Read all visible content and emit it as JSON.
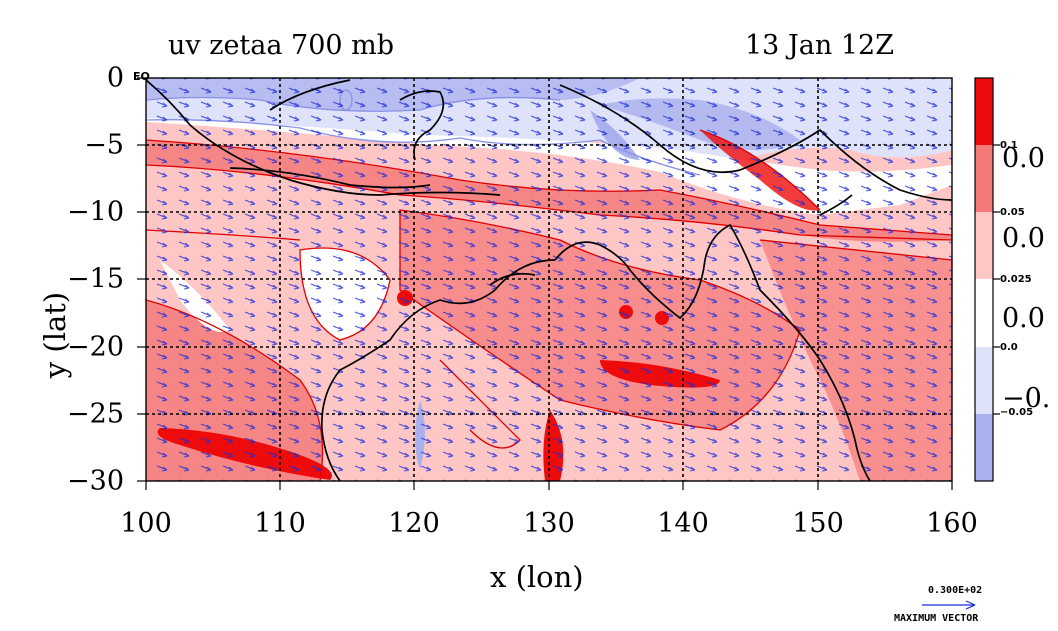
{
  "header": {
    "title_left": "uv zetaa 700 mb",
    "title_right": "13 Jan 12Z"
  },
  "colors": {
    "neg_strong": "#a9b0ee",
    "neg_weak": "#dfe2fb",
    "zero": "#ffffff",
    "pos_weak": "#ffc6c6",
    "pos_mid": "#f57979",
    "pos_strong": "#ee0b0b",
    "contour_red": "#e00000",
    "contour_blue": "#8890e8",
    "vector": "#1a2bdc",
    "coast": "#000000"
  },
  "chart_data": {
    "type": "heatmap",
    "title": "uv zetaa 700 mb",
    "subtitle": "13 Jan 12Z",
    "xlabel": "x (lon)",
    "ylabel": "y (lat)",
    "xlim": [
      100,
      160
    ],
    "ylim": [
      -30,
      0
    ],
    "x_ticks": [
      "100",
      "110",
      "120",
      "130",
      "140",
      "150",
      "160"
    ],
    "y_ticks": [
      "0",
      "−5",
      "−10",
      "−15",
      "−20",
      "−25",
      "−30"
    ],
    "y_tick_values": [
      0,
      -5,
      -10,
      -15,
      -20,
      -25,
      -30
    ],
    "x_tick_values": [
      100,
      110,
      120,
      130,
      140,
      150,
      160
    ],
    "equator_label": "EQ",
    "grid": true,
    "colorbar": {
      "levels": [
        "0.1",
        "0.05",
        "0.025",
        "0.0",
        "−0.05"
      ],
      "partial_labels": [
        "0.0",
        "0.0",
        "0.0",
        "−0."
      ]
    },
    "max_vector": {
      "value": "0.300E+02",
      "label": "MAXIMUM VECTOR"
    }
  }
}
